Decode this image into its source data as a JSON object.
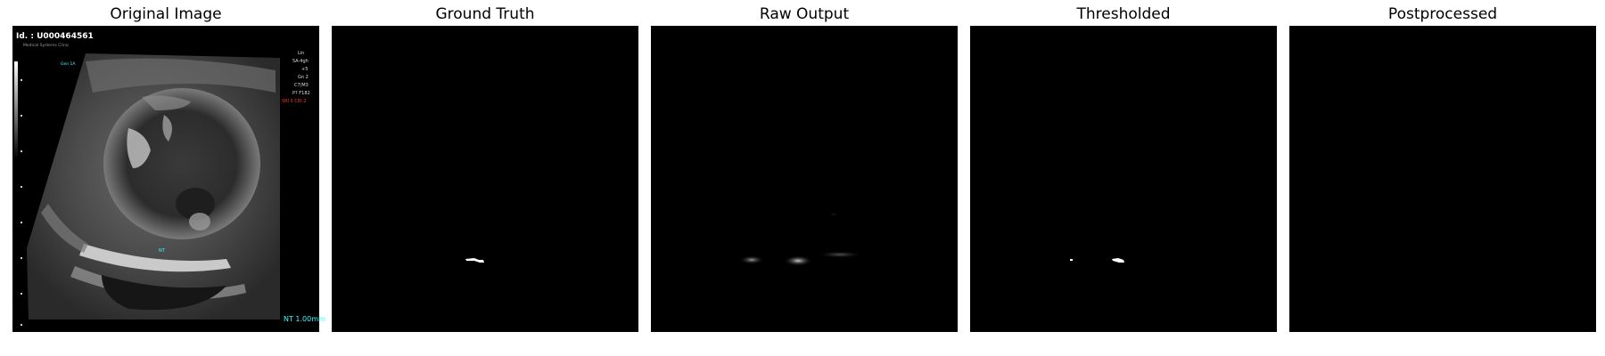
{
  "figure": {
    "panels": [
      {
        "title": "Original Image"
      },
      {
        "title": "Ground Truth"
      },
      {
        "title": "Raw Output"
      },
      {
        "title": "Thresholded"
      },
      {
        "title": "Postprocessed"
      }
    ]
  },
  "ultrasound": {
    "patient_id": "Id. : U000464561",
    "institution": "Medical Systems Clinic",
    "depth_marker": "Gen 1A",
    "nt_caption": "NT",
    "nt_measurement": "NT 1.00mm",
    "params": [
      "Lin",
      "5A-4gh",
      "+5",
      "Gn 2",
      "C7/M3",
      "P? F182",
      "SRI II CRI 2"
    ],
    "param_alert_color": "#ff3030",
    "cyan_color": "#33ffff"
  }
}
